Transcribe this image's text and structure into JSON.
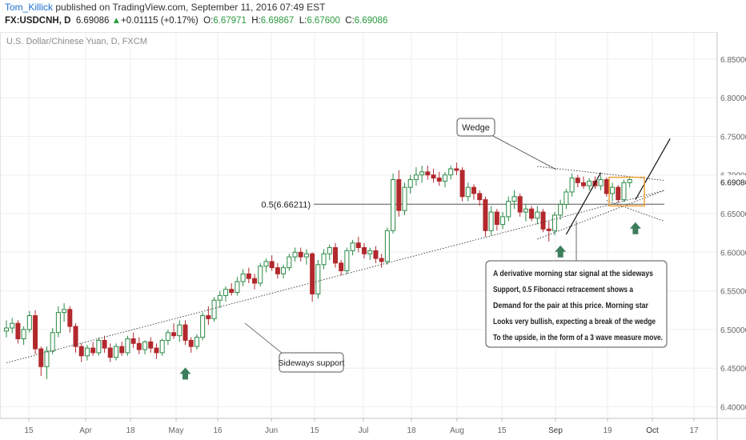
{
  "header": {
    "author": "Tom_Killick",
    "published": " published on TradingView.com, September 11, 2016 07:49 EST",
    "symbol": "FX:USDCNH, D",
    "last": "6.69086",
    "change": "+0.01115 (+0.17%)",
    "o_label": "O:",
    "o": "6.67971",
    "h_label": "H:",
    "h": "6.69867",
    "l_label": "L:",
    "l": "6.67600",
    "c_label": "C:",
    "c": "6.69086",
    "subtitle": "U.S. Dollar/Chinese Yuan, D, FXCM"
  },
  "colors": {
    "up": "#2a8a44",
    "down": "#b2282d",
    "arrow": "#3c7e5b",
    "box": "#f0a23c",
    "grid": "#eeeeee"
  },
  "chart_data": {
    "type": "candlestick",
    "x_dates": [
      "2016-03-11",
      "2016-09-09"
    ],
    "xtick_labels": [
      "15",
      "Apr",
      "18",
      "May",
      "16",
      "Jun",
      "15",
      "Jul",
      "18",
      "Aug",
      "15",
      "Sep",
      "19",
      "Oct",
      "17"
    ],
    "yticks": [
      6.85,
      6.8,
      6.75,
      6.7,
      6.65,
      6.6,
      6.55,
      6.5,
      6.45,
      6.4
    ],
    "ytick_labels": [
      "6.85000",
      "6.80000",
      "6.75000",
      "6.70000",
      "6.65000",
      "6.60000",
      "6.55000",
      "6.50000",
      "6.45000",
      "6.40000"
    ],
    "ylim": [
      6.385,
      6.885
    ],
    "last_price": 6.69086,
    "last_price_label": "6.69086",
    "fib_level": 6.66211,
    "fib_label": "0.5(6.66211)",
    "candles_ohlc": [
      [
        6.498,
        6.512,
        6.49,
        6.502
      ],
      [
        6.502,
        6.515,
        6.495,
        6.508
      ],
      [
        6.508,
        6.512,
        6.482,
        6.488
      ],
      [
        6.488,
        6.504,
        6.48,
        6.5
      ],
      [
        6.5,
        6.524,
        6.496,
        6.518
      ],
      [
        6.518,
        6.525,
        6.468,
        6.475
      ],
      [
        6.475,
        6.478,
        6.44,
        6.452
      ],
      [
        6.452,
        6.478,
        6.436,
        6.472
      ],
      [
        6.472,
        6.502,
        6.468,
        6.496
      ],
      [
        6.496,
        6.53,
        6.49,
        6.522
      ],
      [
        6.522,
        6.534,
        6.51,
        6.526
      ],
      [
        6.526,
        6.53,
        6.496,
        6.504
      ],
      [
        6.504,
        6.508,
        6.47,
        6.478
      ],
      [
        6.478,
        6.482,
        6.458,
        6.466
      ],
      [
        6.466,
        6.48,
        6.46,
        6.476
      ],
      [
        6.476,
        6.484,
        6.466,
        6.47
      ],
      [
        6.47,
        6.49,
        6.466,
        6.486
      ],
      [
        6.486,
        6.492,
        6.47,
        6.476
      ],
      [
        6.476,
        6.482,
        6.458,
        6.464
      ],
      [
        6.464,
        6.482,
        6.46,
        6.478
      ],
      [
        6.478,
        6.484,
        6.466,
        6.47
      ],
      [
        6.47,
        6.492,
        6.466,
        6.488
      ],
      [
        6.488,
        6.496,
        6.476,
        6.482
      ],
      [
        6.482,
        6.49,
        6.468,
        6.474
      ],
      [
        6.474,
        6.486,
        6.468,
        6.484
      ],
      [
        6.484,
        6.49,
        6.47,
        6.476
      ],
      [
        6.476,
        6.482,
        6.462,
        6.47
      ],
      [
        6.47,
        6.488,
        6.466,
        6.486
      ],
      [
        6.486,
        6.5,
        6.48,
        6.496
      ],
      [
        6.496,
        6.508,
        6.488,
        6.492
      ],
      [
        6.492,
        6.512,
        6.484,
        6.506
      ],
      [
        6.506,
        6.512,
        6.48,
        6.486
      ],
      [
        6.486,
        6.49,
        6.47,
        6.478
      ],
      [
        6.478,
        6.494,
        6.474,
        6.49
      ],
      [
        6.49,
        6.522,
        6.486,
        6.518
      ],
      [
        6.518,
        6.53,
        6.506,
        6.514
      ],
      [
        6.514,
        6.542,
        6.51,
        6.538
      ],
      [
        6.538,
        6.55,
        6.528,
        6.544
      ],
      [
        6.544,
        6.556,
        6.536,
        6.552
      ],
      [
        6.552,
        6.56,
        6.544,
        6.548
      ],
      [
        6.548,
        6.568,
        6.544,
        6.562
      ],
      [
        6.562,
        6.578,
        6.556,
        6.572
      ],
      [
        6.572,
        6.58,
        6.56,
        6.566
      ],
      [
        6.566,
        6.572,
        6.552,
        6.56
      ],
      [
        6.56,
        6.586,
        6.556,
        6.582
      ],
      [
        6.582,
        6.592,
        6.574,
        6.588
      ],
      [
        6.588,
        6.596,
        6.576,
        6.58
      ],
      [
        6.58,
        6.586,
        6.566,
        6.572
      ],
      [
        6.572,
        6.584,
        6.566,
        6.58
      ],
      [
        6.58,
        6.598,
        6.576,
        6.594
      ],
      [
        6.594,
        6.606,
        6.588,
        6.6
      ],
      [
        6.6,
        6.606,
        6.588,
        6.594
      ],
      [
        6.594,
        6.604,
        6.584,
        6.598
      ],
      [
        6.598,
        6.6,
        6.536,
        6.546
      ],
      [
        6.546,
        6.59,
        6.54,
        6.584
      ],
      [
        6.584,
        6.604,
        6.578,
        6.598
      ],
      [
        6.598,
        6.61,
        6.59,
        6.606
      ],
      [
        6.606,
        6.612,
        6.58,
        6.586
      ],
      [
        6.586,
        6.59,
        6.57,
        6.576
      ],
      [
        6.576,
        6.606,
        6.572,
        6.602
      ],
      [
        6.602,
        6.616,
        6.596,
        6.612
      ],
      [
        6.612,
        6.62,
        6.6,
        6.606
      ],
      [
        6.606,
        6.612,
        6.592,
        6.598
      ],
      [
        6.598,
        6.606,
        6.59,
        6.602
      ],
      [
        6.602,
        6.608,
        6.586,
        6.592
      ],
      [
        6.592,
        6.598,
        6.58,
        6.588
      ],
      [
        6.588,
        6.632,
        6.584,
        6.628
      ],
      [
        6.628,
        6.702,
        6.624,
        6.694
      ],
      [
        6.694,
        6.706,
        6.646,
        6.654
      ],
      [
        6.654,
        6.69,
        6.648,
        6.684
      ],
      [
        6.684,
        6.7,
        6.676,
        6.694
      ],
      [
        6.694,
        6.71,
        6.686,
        6.7
      ],
      [
        6.7,
        6.712,
        6.69,
        6.704
      ],
      [
        6.704,
        6.712,
        6.694,
        6.7
      ],
      [
        6.7,
        6.708,
        6.69,
        6.696
      ],
      [
        6.696,
        6.704,
        6.686,
        6.692
      ],
      [
        6.692,
        6.704,
        6.684,
        6.7
      ],
      [
        6.7,
        6.712,
        6.694,
        6.708
      ],
      [
        6.708,
        6.716,
        6.7,
        6.706
      ],
      [
        6.706,
        6.71,
        6.666,
        6.672
      ],
      [
        6.672,
        6.69,
        6.666,
        6.684
      ],
      [
        6.684,
        6.688,
        6.668,
        6.676
      ],
      [
        6.676,
        6.68,
        6.66,
        6.668
      ],
      [
        6.668,
        6.672,
        6.62,
        6.628
      ],
      [
        6.628,
        6.66,
        6.622,
        6.652
      ],
      [
        6.652,
        6.656,
        6.628,
        6.636
      ],
      [
        6.636,
        6.652,
        6.63,
        6.646
      ],
      [
        6.646,
        6.672,
        6.64,
        6.666
      ],
      [
        6.666,
        6.68,
        6.656,
        6.672
      ],
      [
        6.672,
        6.676,
        6.646,
        6.652
      ],
      [
        6.652,
        6.662,
        6.64,
        6.656
      ],
      [
        6.656,
        6.66,
        6.64,
        6.644
      ],
      [
        6.644,
        6.66,
        6.636,
        6.652
      ],
      [
        6.652,
        6.656,
        6.626,
        6.63
      ],
      [
        6.63,
        6.64,
        6.614,
        6.628
      ],
      [
        6.628,
        6.652,
        6.622,
        6.648
      ],
      [
        6.648,
        6.668,
        6.642,
        6.662
      ],
      [
        6.662,
        6.682,
        6.656,
        6.678
      ],
      [
        6.678,
        6.702,
        6.672,
        6.696
      ],
      [
        6.696,
        6.7,
        6.684,
        6.69
      ],
      [
        6.69,
        6.698,
        6.682,
        6.686
      ],
      [
        6.686,
        6.696,
        6.68,
        6.692
      ],
      [
        6.692,
        6.698,
        6.682,
        6.686
      ],
      [
        6.686,
        6.7,
        6.68,
        6.694
      ],
      [
        6.694,
        6.697,
        6.672,
        6.676
      ],
      [
        6.676,
        6.69,
        6.666,
        6.684
      ],
      [
        6.684,
        6.687,
        6.664,
        6.668
      ],
      [
        6.668,
        6.694,
        6.665,
        6.69
      ],
      [
        6.69,
        6.696,
        6.684,
        6.694
      ]
    ],
    "trendlines": [
      {
        "name": "sideways-support-line",
        "from": [
          0,
          6.457
        ],
        "to": [
          114,
          6.68
        ],
        "style": "dotted"
      },
      {
        "name": "wedge-upper-line",
        "from": [
          92,
          6.711
        ],
        "to": [
          114,
          6.693
        ],
        "style": "dotted"
      },
      {
        "name": "wedge-lower-line",
        "from": [
          92,
          6.617
        ],
        "to": [
          114,
          6.68
        ],
        "style": "dotted"
      },
      {
        "name": "wedge-flare-lower",
        "from": [
          104,
          6.667
        ],
        "to": [
          114,
          6.64
        ],
        "style": "dotted"
      },
      {
        "name": "impulse-line",
        "from": [
          97,
          6.623
        ],
        "to": [
          103,
          6.703
        ],
        "style": "solid"
      },
      {
        "name": "projection-line",
        "from": [
          109,
          6.668
        ],
        "to": [
          115,
          6.747
        ],
        "style": "solid"
      }
    ],
    "arrows": [
      {
        "name": "may-arrow",
        "x": 31,
        "y": 6.455
      },
      {
        "name": "aug-arrow",
        "x": 96,
        "y": 6.613
      },
      {
        "name": "sep-arrow",
        "x": 109,
        "y": 6.643
      }
    ],
    "box": {
      "x0": 105,
      "x1": 110,
      "y0": 6.66,
      "y1": 6.697
    },
    "annotations": [
      {
        "name": "wedge-label",
        "text": "Wedge"
      },
      {
        "name": "sideways-support-label",
        "text": "Sideways support"
      },
      {
        "name": "morning-star-note",
        "lines": [
          "A derivative morning star signal at the sideways",
          "Support, 0.5 Fibonacci retracement shows a",
          "Demand for the pair at this price. Morning star",
          "Looks very bullish, expecting a break of the wedge",
          "To the upside, in the form of a 3 wave measure move."
        ]
      }
    ]
  }
}
